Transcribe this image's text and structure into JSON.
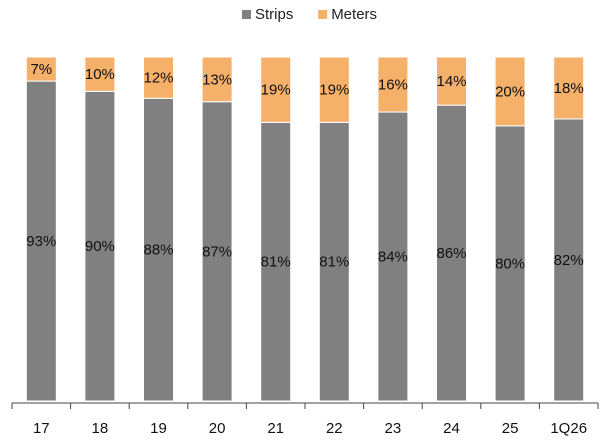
{
  "chart_data": {
    "type": "bar",
    "stacked": true,
    "percent_stacked": true,
    "categories": [
      "17",
      "18",
      "19",
      "20",
      "21",
      "22",
      "23",
      "24",
      "25",
      "1Q26"
    ],
    "series": [
      {
        "name": "Strips",
        "color": "#808080",
        "values": [
          93,
          90,
          88,
          87,
          81,
          81,
          84,
          86,
          80,
          82
        ],
        "labels": [
          "93%",
          "90%",
          "88%",
          "87%",
          "81%",
          "81%",
          "84%",
          "86%",
          "80%",
          "82%"
        ]
      },
      {
        "name": "Meters",
        "color": "#F5B06A",
        "values": [
          7,
          10,
          12,
          13,
          19,
          19,
          16,
          14,
          20,
          18
        ],
        "labels": [
          "7%",
          "10%",
          "12%",
          "13%",
          "19%",
          "19%",
          "16%",
          "14%",
          "20%",
          "18%"
        ]
      }
    ],
    "ylim": [
      0,
      100
    ],
    "grid": false,
    "legend_position": "top-center"
  }
}
